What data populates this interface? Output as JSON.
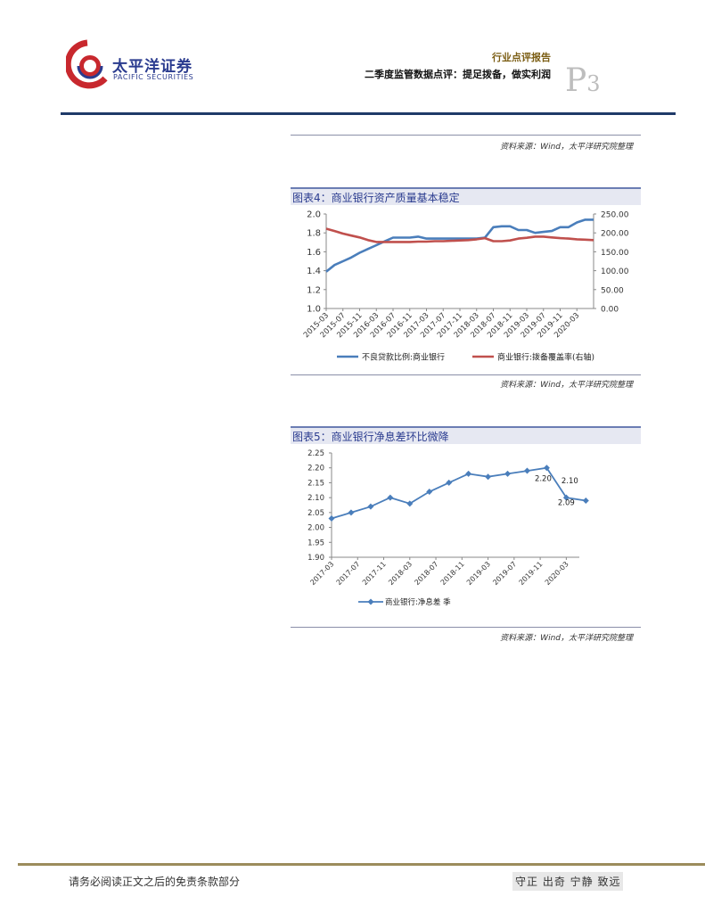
{
  "header": {
    "company_cn": "太平洋证券",
    "company_en": "PACIFIC SECURITIES",
    "category": "行业点评报告",
    "report_title": "二季度监管数据点评：提足拨备，做实利润",
    "page_letter": "P",
    "page_number": "3"
  },
  "sources": {
    "top": "资料来源：Wind，太平洋研究院整理",
    "fig4": "资料来源：Wind，太平洋研究院整理",
    "fig5": "资料来源：Wind，太平洋研究院整理"
  },
  "colors": {
    "blue": "#4a7ebb",
    "red": "#c0504d",
    "navy": "#1f3a68",
    "gold": "#9c8c5c"
  },
  "chart_data": [
    {
      "type": "line",
      "title": "图表4：商业银行资产质量基本稳定",
      "x": [
        "2015-03",
        "2015-05",
        "2015-07",
        "2015-09",
        "2015-11",
        "2016-01",
        "2016-03",
        "2016-05",
        "2016-07",
        "2016-09",
        "2016-11",
        "2017-01",
        "2017-03",
        "2017-05",
        "2017-07",
        "2017-09",
        "2017-11",
        "2018-01",
        "2018-03",
        "2018-05",
        "2018-07",
        "2018-09",
        "2018-11",
        "2019-01",
        "2019-03",
        "2019-05",
        "2019-07",
        "2019-09",
        "2019-11",
        "2020-01",
        "2020-03",
        "2020-05",
        "2020-07"
      ],
      "tick_labels": [
        "2015-03",
        "2015-07",
        "2015-11",
        "2016-03",
        "2016-07",
        "2016-11",
        "2017-03",
        "2017-07",
        "2017-11",
        "2018-03",
        "2018-07",
        "2018-11",
        "2019-03",
        "2019-07",
        "2019-11",
        "2020-03"
      ],
      "ylim": [
        1.0,
        2.0
      ],
      "y_ticks": [
        "2.0",
        "1.8",
        "1.6",
        "1.4",
        "1.2",
        "1.0"
      ],
      "y2lim": [
        0,
        250
      ],
      "y2_ticks": [
        "250.00",
        "200.00",
        "150.00",
        "100.00",
        "50.00",
        "0.00"
      ],
      "legend": "bottom",
      "series": [
        {
          "name": "不良贷款比例:商业银行",
          "color": "#4a7ebb",
          "axis": "left",
          "values": [
            1.39,
            1.46,
            1.5,
            1.54,
            1.59,
            1.63,
            1.67,
            1.71,
            1.75,
            1.75,
            1.75,
            1.76,
            1.74,
            1.74,
            1.74,
            1.74,
            1.74,
            1.74,
            1.74,
            1.75,
            1.86,
            1.87,
            1.87,
            1.83,
            1.83,
            1.8,
            1.81,
            1.82,
            1.86,
            1.86,
            1.91,
            1.94,
            1.94
          ]
        },
        {
          "name": "商业银行:拨备覆盖率(右轴)",
          "color": "#c0504d",
          "axis": "right",
          "values": [
            211,
            205,
            198,
            193,
            188,
            181,
            176,
            176,
            176,
            176,
            176,
            177,
            177,
            178,
            178,
            179,
            180,
            181,
            183,
            186,
            178,
            178,
            180,
            185,
            187,
            190,
            190,
            188,
            186,
            185,
            183,
            182,
            181
          ]
        }
      ]
    },
    {
      "type": "line",
      "title": "图表5：商业银行净息差环比微降",
      "categories": [
        "2017-03",
        "2017-05",
        "2017-07",
        "2017-09",
        "2017-11",
        "2018-01",
        "2018-03",
        "2018-05",
        "2018-07",
        "2018-09",
        "2018-11",
        "2019-01",
        "2019-03",
        "2019-05",
        "2019-07",
        "2019-09",
        "2019-11",
        "2020-01",
        "2020-03",
        "2020-05"
      ],
      "tick_labels": [
        "2017-03",
        "2017-07",
        "2017-11",
        "2018-03",
        "2018-07",
        "2018-11",
        "2019-03",
        "2019-07",
        "2019-11",
        "2020-03"
      ],
      "points": [
        {
          "x": "2017-03",
          "value": 2.03
        },
        {
          "x": "2017-06",
          "value": 2.05
        },
        {
          "x": "2017-09",
          "value": 2.07
        },
        {
          "x": "2017-12",
          "value": 2.1
        },
        {
          "x": "2018-03",
          "value": 2.08
        },
        {
          "x": "2018-06",
          "value": 2.12
        },
        {
          "x": "2018-09",
          "value": 2.15
        },
        {
          "x": "2018-12",
          "value": 2.18
        },
        {
          "x": "2019-03",
          "value": 2.17
        },
        {
          "x": "2019-06",
          "value": 2.18
        },
        {
          "x": "2019-09",
          "value": 2.19
        },
        {
          "x": "2019-12",
          "value": 2.2
        },
        {
          "x": "2020-03",
          "value": 2.1
        },
        {
          "x": "2020-06",
          "value": 2.09
        }
      ],
      "data_labels": [
        {
          "x": "2019-12",
          "text": "2.20"
        },
        {
          "x": "2020-03",
          "text": "2.10"
        },
        {
          "x": "2020-06",
          "text": "2.09"
        }
      ],
      "ylim": [
        1.9,
        2.25
      ],
      "y_ticks": [
        "2.25",
        "2.20",
        "2.15",
        "2.10",
        "2.05",
        "2.00",
        "1.95",
        "1.90"
      ],
      "legend": "bottom",
      "series": [
        {
          "name": "商业银行:净息差 季",
          "color": "#4a7ebb"
        }
      ]
    }
  ],
  "footer": {
    "disclaimer": "请务必阅读正文之后的免责条款部分",
    "motto": "守正 出奇 宁静 致远"
  }
}
